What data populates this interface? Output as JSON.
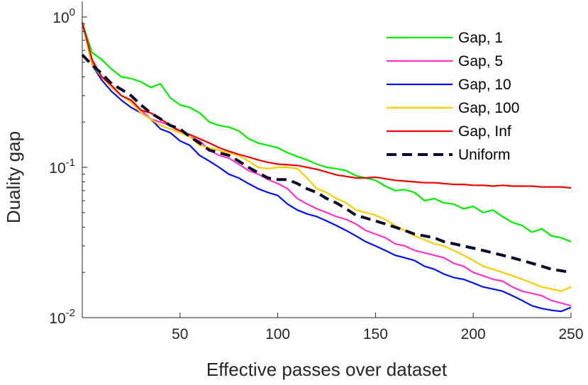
{
  "chart_data": {
    "type": "line",
    "title": "",
    "xlabel": "Effective passes over dataset",
    "ylabel": "Duality gap",
    "xlim": [
      0,
      250
    ],
    "ylim": [
      0.01,
      1
    ],
    "yscale": "log",
    "grid": false,
    "legend_position": "top-right",
    "x_ticks": [
      {
        "value": 50,
        "label": "50"
      },
      {
        "value": 100,
        "label": "100"
      },
      {
        "value": 150,
        "label": "150"
      },
      {
        "value": 200,
        "label": "200"
      },
      {
        "value": 250,
        "label": "250"
      }
    ],
    "y_ticks": [
      {
        "value": 1,
        "base": "10",
        "exp": "0"
      },
      {
        "value": 0.1,
        "base": "10",
        "exp": "-1"
      },
      {
        "value": 0.01,
        "base": "10",
        "exp": "-2"
      }
    ],
    "series": [
      {
        "name": "Gap, 1",
        "color": "#00ee00",
        "dash": "solid",
        "points": [
          [
            0,
            0.92
          ],
          [
            5,
            0.58
          ],
          [
            10,
            0.52
          ],
          [
            15,
            0.45
          ],
          [
            20,
            0.4
          ],
          [
            25,
            0.39
          ],
          [
            30,
            0.37
          ],
          [
            35,
            0.34
          ],
          [
            40,
            0.36
          ],
          [
            45,
            0.29
          ],
          [
            50,
            0.26
          ],
          [
            55,
            0.25
          ],
          [
            60,
            0.23
          ],
          [
            65,
            0.2
          ],
          [
            70,
            0.19
          ],
          [
            75,
            0.185
          ],
          [
            80,
            0.175
          ],
          [
            85,
            0.155
          ],
          [
            90,
            0.145
          ],
          [
            95,
            0.14
          ],
          [
            100,
            0.135
          ],
          [
            105,
            0.125
          ],
          [
            110,
            0.118
          ],
          [
            115,
            0.112
          ],
          [
            120,
            0.105
          ],
          [
            125,
            0.1
          ],
          [
            130,
            0.098
          ],
          [
            135,
            0.095
          ],
          [
            140,
            0.088
          ],
          [
            145,
            0.085
          ],
          [
            150,
            0.082
          ],
          [
            155,
            0.075
          ],
          [
            160,
            0.07
          ],
          [
            165,
            0.071
          ],
          [
            170,
            0.068
          ],
          [
            175,
            0.06
          ],
          [
            180,
            0.062
          ],
          [
            185,
            0.058
          ],
          [
            190,
            0.057
          ],
          [
            195,
            0.053
          ],
          [
            200,
            0.055
          ],
          [
            205,
            0.05
          ],
          [
            210,
            0.052
          ],
          [
            215,
            0.047
          ],
          [
            220,
            0.043
          ],
          [
            225,
            0.041
          ],
          [
            230,
            0.037
          ],
          [
            235,
            0.039
          ],
          [
            240,
            0.035
          ],
          [
            245,
            0.034
          ],
          [
            250,
            0.032
          ]
        ]
      },
      {
        "name": "Gap, 5",
        "color": "#ff33cc",
        "dash": "solid",
        "points": [
          [
            0,
            0.92
          ],
          [
            5,
            0.5
          ],
          [
            10,
            0.4
          ],
          [
            15,
            0.34
          ],
          [
            20,
            0.3
          ],
          [
            25,
            0.28
          ],
          [
            30,
            0.24
          ],
          [
            35,
            0.21
          ],
          [
            40,
            0.2
          ],
          [
            45,
            0.19
          ],
          [
            50,
            0.17
          ],
          [
            55,
            0.16
          ],
          [
            60,
            0.15
          ],
          [
            65,
            0.13
          ],
          [
            70,
            0.12
          ],
          [
            75,
            0.115
          ],
          [
            80,
            0.105
          ],
          [
            85,
            0.095
          ],
          [
            90,
            0.09
          ],
          [
            95,
            0.083
          ],
          [
            100,
            0.078
          ],
          [
            105,
            0.072
          ],
          [
            110,
            0.062
          ],
          [
            115,
            0.057
          ],
          [
            120,
            0.053
          ],
          [
            125,
            0.05
          ],
          [
            130,
            0.047
          ],
          [
            135,
            0.045
          ],
          [
            140,
            0.042
          ],
          [
            145,
            0.038
          ],
          [
            150,
            0.036
          ],
          [
            155,
            0.034
          ],
          [
            160,
            0.031
          ],
          [
            165,
            0.03
          ],
          [
            170,
            0.028
          ],
          [
            175,
            0.027
          ],
          [
            180,
            0.026
          ],
          [
            185,
            0.025
          ],
          [
            190,
            0.023
          ],
          [
            195,
            0.022
          ],
          [
            200,
            0.02
          ],
          [
            205,
            0.019
          ],
          [
            210,
            0.018
          ],
          [
            215,
            0.0175
          ],
          [
            220,
            0.016
          ],
          [
            225,
            0.015
          ],
          [
            230,
            0.0145
          ],
          [
            235,
            0.014
          ],
          [
            240,
            0.013
          ],
          [
            245,
            0.0125
          ],
          [
            250,
            0.012
          ]
        ]
      },
      {
        "name": "Gap, 10",
        "color": "#0011ee",
        "dash": "solid",
        "points": [
          [
            0,
            0.92
          ],
          [
            5,
            0.48
          ],
          [
            10,
            0.38
          ],
          [
            15,
            0.32
          ],
          [
            20,
            0.28
          ],
          [
            25,
            0.25
          ],
          [
            30,
            0.23
          ],
          [
            35,
            0.21
          ],
          [
            40,
            0.18
          ],
          [
            45,
            0.17
          ],
          [
            50,
            0.15
          ],
          [
            55,
            0.14
          ],
          [
            60,
            0.12
          ],
          [
            65,
            0.11
          ],
          [
            70,
            0.1
          ],
          [
            75,
            0.09
          ],
          [
            80,
            0.085
          ],
          [
            85,
            0.078
          ],
          [
            90,
            0.072
          ],
          [
            95,
            0.068
          ],
          [
            100,
            0.065
          ],
          [
            105,
            0.057
          ],
          [
            110,
            0.052
          ],
          [
            115,
            0.049
          ],
          [
            120,
            0.047
          ],
          [
            125,
            0.044
          ],
          [
            130,
            0.041
          ],
          [
            135,
            0.038
          ],
          [
            140,
            0.035
          ],
          [
            145,
            0.032
          ],
          [
            150,
            0.03
          ],
          [
            155,
            0.028
          ],
          [
            160,
            0.026
          ],
          [
            165,
            0.025
          ],
          [
            170,
            0.024
          ],
          [
            175,
            0.022
          ],
          [
            180,
            0.021
          ],
          [
            185,
            0.0195
          ],
          [
            190,
            0.0185
          ],
          [
            195,
            0.018
          ],
          [
            200,
            0.017
          ],
          [
            205,
            0.016
          ],
          [
            210,
            0.0155
          ],
          [
            215,
            0.015
          ],
          [
            220,
            0.014
          ],
          [
            225,
            0.013
          ],
          [
            230,
            0.012
          ],
          [
            235,
            0.0115
          ],
          [
            240,
            0.0112
          ],
          [
            245,
            0.011
          ],
          [
            250,
            0.0117
          ]
        ]
      },
      {
        "name": "Gap, 100",
        "color": "#ffcc00",
        "dash": "solid",
        "points": [
          [
            0,
            0.92
          ],
          [
            5,
            0.48
          ],
          [
            10,
            0.4
          ],
          [
            15,
            0.34
          ],
          [
            20,
            0.3
          ],
          [
            25,
            0.27
          ],
          [
            30,
            0.23
          ],
          [
            35,
            0.21
          ],
          [
            40,
            0.19
          ],
          [
            45,
            0.18
          ],
          [
            50,
            0.17
          ],
          [
            55,
            0.16
          ],
          [
            60,
            0.14
          ],
          [
            65,
            0.135
          ],
          [
            70,
            0.13
          ],
          [
            75,
            0.125
          ],
          [
            80,
            0.12
          ],
          [
            85,
            0.11
          ],
          [
            90,
            0.1
          ],
          [
            95,
            0.098
          ],
          [
            100,
            0.1
          ],
          [
            105,
            0.1
          ],
          [
            110,
            0.098
          ],
          [
            115,
            0.085
          ],
          [
            120,
            0.072
          ],
          [
            125,
            0.068
          ],
          [
            130,
            0.062
          ],
          [
            135,
            0.058
          ],
          [
            140,
            0.052
          ],
          [
            145,
            0.05
          ],
          [
            150,
            0.048
          ],
          [
            155,
            0.045
          ],
          [
            160,
            0.041
          ],
          [
            165,
            0.038
          ],
          [
            170,
            0.035
          ],
          [
            175,
            0.033
          ],
          [
            180,
            0.031
          ],
          [
            185,
            0.03
          ],
          [
            190,
            0.028
          ],
          [
            195,
            0.026
          ],
          [
            200,
            0.024
          ],
          [
            205,
            0.022
          ],
          [
            210,
            0.021
          ],
          [
            215,
            0.02
          ],
          [
            220,
            0.019
          ],
          [
            225,
            0.018
          ],
          [
            230,
            0.017
          ],
          [
            235,
            0.016
          ],
          [
            240,
            0.0155
          ],
          [
            245,
            0.015
          ],
          [
            250,
            0.016
          ]
        ]
      },
      {
        "name": "Gap, Inf",
        "color": "#ee0000",
        "dash": "solid",
        "points": [
          [
            0,
            0.92
          ],
          [
            5,
            0.52
          ],
          [
            10,
            0.4
          ],
          [
            15,
            0.35
          ],
          [
            20,
            0.3
          ],
          [
            25,
            0.28
          ],
          [
            30,
            0.24
          ],
          [
            35,
            0.23
          ],
          [
            40,
            0.21
          ],
          [
            45,
            0.19
          ],
          [
            50,
            0.175
          ],
          [
            55,
            0.165
          ],
          [
            60,
            0.155
          ],
          [
            65,
            0.145
          ],
          [
            70,
            0.135
          ],
          [
            75,
            0.128
          ],
          [
            80,
            0.122
          ],
          [
            85,
            0.117
          ],
          [
            90,
            0.112
          ],
          [
            95,
            0.108
          ],
          [
            100,
            0.105
          ],
          [
            105,
            0.104
          ],
          [
            110,
            0.103
          ],
          [
            115,
            0.1
          ],
          [
            120,
            0.097
          ],
          [
            125,
            0.093
          ],
          [
            130,
            0.089
          ],
          [
            135,
            0.087
          ],
          [
            140,
            0.085
          ],
          [
            145,
            0.085
          ],
          [
            150,
            0.086
          ],
          [
            155,
            0.084
          ],
          [
            160,
            0.082
          ],
          [
            165,
            0.081
          ],
          [
            170,
            0.08
          ],
          [
            175,
            0.079
          ],
          [
            180,
            0.079
          ],
          [
            185,
            0.078
          ],
          [
            190,
            0.077
          ],
          [
            195,
            0.077
          ],
          [
            200,
            0.076
          ],
          [
            205,
            0.076
          ],
          [
            210,
            0.075
          ],
          [
            215,
            0.076
          ],
          [
            220,
            0.075
          ],
          [
            225,
            0.075
          ],
          [
            230,
            0.075
          ],
          [
            235,
            0.074
          ],
          [
            240,
            0.074
          ],
          [
            245,
            0.074
          ],
          [
            250,
            0.073
          ]
        ]
      },
      {
        "name": "Uniform",
        "color": "#0a0a2a",
        "dash": "dashed",
        "points": [
          [
            0,
            0.56
          ],
          [
            5,
            0.48
          ],
          [
            10,
            0.42
          ],
          [
            15,
            0.36
          ],
          [
            20,
            0.33
          ],
          [
            25,
            0.3
          ],
          [
            30,
            0.26
          ],
          [
            35,
            0.23
          ],
          [
            40,
            0.21
          ],
          [
            45,
            0.19
          ],
          [
            50,
            0.18
          ],
          [
            55,
            0.16
          ],
          [
            60,
            0.145
          ],
          [
            65,
            0.13
          ],
          [
            70,
            0.125
          ],
          [
            75,
            0.12
          ],
          [
            80,
            0.11
          ],
          [
            85,
            0.1
          ],
          [
            90,
            0.092
          ],
          [
            95,
            0.085
          ],
          [
            100,
            0.083
          ],
          [
            105,
            0.083
          ],
          [
            110,
            0.078
          ],
          [
            115,
            0.072
          ],
          [
            120,
            0.068
          ],
          [
            125,
            0.062
          ],
          [
            130,
            0.058
          ],
          [
            135,
            0.053
          ],
          [
            140,
            0.048
          ],
          [
            145,
            0.046
          ],
          [
            150,
            0.044
          ],
          [
            155,
            0.042
          ],
          [
            160,
            0.04
          ],
          [
            165,
            0.038
          ],
          [
            170,
            0.036
          ],
          [
            175,
            0.035
          ],
          [
            180,
            0.034
          ],
          [
            185,
            0.032
          ],
          [
            190,
            0.031
          ],
          [
            195,
            0.03
          ],
          [
            200,
            0.029
          ],
          [
            205,
            0.028
          ],
          [
            210,
            0.027
          ],
          [
            215,
            0.026
          ],
          [
            220,
            0.025
          ],
          [
            225,
            0.024
          ],
          [
            230,
            0.023
          ],
          [
            235,
            0.022
          ],
          [
            240,
            0.021
          ],
          [
            245,
            0.0205
          ],
          [
            250,
            0.02
          ]
        ]
      }
    ]
  }
}
